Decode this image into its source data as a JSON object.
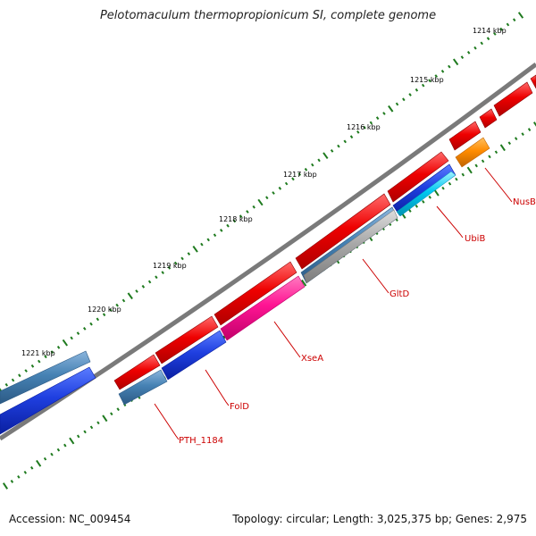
{
  "title": "Pelotomaculum thermopropionicum SI, complete genome",
  "footer": {
    "accession": "Accession: NC_009454",
    "summary": "Topology: circular; Length: 3,025,375 bp; Genes: 2,975"
  },
  "colors": {
    "label_red": "#cc0000",
    "tick_green": "#1e7a1e",
    "backbone": "#7a7a7a"
  },
  "kbp_labels": [
    "1214 kbp",
    "1215 kbp",
    "1216 kbp",
    "1217 kbp",
    "1218 kbp",
    "1219 kbp",
    "1220 kbp",
    "1221 kbp"
  ],
  "gene_labels": [
    "NusB",
    "UbiB",
    "GltD",
    "XseA",
    "FolD",
    "PTH_1184"
  ],
  "features": [
    {
      "track": "outer-red",
      "color": "#ee0000",
      "strand": "+"
    },
    {
      "track": "outer-blue",
      "color": "#1f3fe0",
      "strand": "-"
    },
    {
      "track": "nusB",
      "color": "#ff8c00",
      "strand": "-"
    },
    {
      "track": "ubiB",
      "color": "#00c8f0",
      "strand": "-"
    },
    {
      "track": "gltD",
      "color": "#a9a9a9",
      "strand": "-"
    },
    {
      "track": "xseA",
      "color": "#ff1493",
      "strand": "-"
    },
    {
      "track": "folD",
      "color": "#0000ee",
      "strand": "-"
    },
    {
      "track": "pth1184",
      "color": "#4682b4",
      "strand": "-"
    }
  ]
}
